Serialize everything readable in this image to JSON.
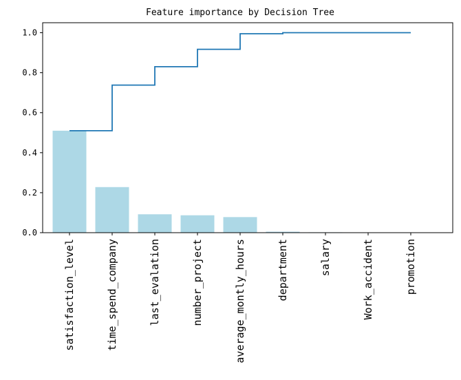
{
  "chart_data": {
    "type": "bar",
    "title": "Feature importance by Decision Tree",
    "xlabel": "",
    "ylabel": "",
    "categories": [
      "satisfaction_level",
      "time_spend_company",
      "last_evalation",
      "number_project",
      "average_montly_hours",
      "department",
      "salary",
      "Work_accident",
      "promotion"
    ],
    "values": [
      0.51,
      0.228,
      0.092,
      0.087,
      0.078,
      0.005,
      0.002,
      0.0015,
      0.0005
    ],
    "cumulative": [
      0.51,
      0.738,
      0.83,
      0.917,
      0.995,
      1.0,
      1.0,
      1.0,
      1.0
    ],
    "ylim": [
      0,
      1.05
    ],
    "yticks": [
      0.0,
      0.2,
      0.4,
      0.6,
      0.8,
      1.0
    ],
    "ytick_labels": [
      "0.0",
      "0.2",
      "0.4",
      "0.6",
      "0.8",
      "1.0"
    ],
    "grid": false,
    "colors": {
      "bar": "#add8e6",
      "line": "#1f77b4"
    }
  }
}
